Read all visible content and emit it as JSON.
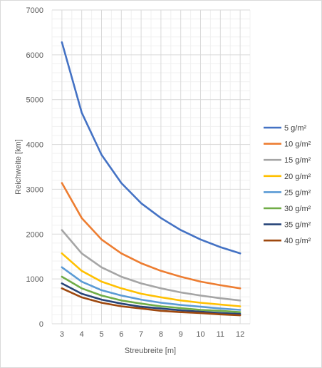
{
  "chart_data": {
    "type": "line",
    "title": "",
    "xlabel": "Streubreite [m]",
    "ylabel": "Reichweite [km]",
    "x": [
      3,
      4,
      5,
      6,
      7,
      8,
      9,
      10,
      11,
      12
    ],
    "xlim": [
      2.5,
      12.5
    ],
    "ylim": [
      0,
      7000
    ],
    "yticks": [
      0,
      1000,
      2000,
      3000,
      4000,
      5000,
      6000,
      7000
    ],
    "grid": true,
    "legend_position": "right",
    "series": [
      {
        "name": "5 g/m²",
        "color": "#4472c4",
        "values": [
          6280,
          4710,
          3770,
          3140,
          2690,
          2360,
          2090,
          1880,
          1710,
          1570
        ]
      },
      {
        "name": "10 g/m²",
        "color": "#ed7d31",
        "values": [
          3140,
          2360,
          1880,
          1570,
          1350,
          1180,
          1050,
          940,
          860,
          790
        ]
      },
      {
        "name": "15 g/m²",
        "color": "#a5a5a5",
        "values": [
          2090,
          1570,
          1260,
          1050,
          900,
          790,
          700,
          630,
          570,
          520
        ]
      },
      {
        "name": "20 g/m²",
        "color": "#ffc000",
        "values": [
          1570,
          1180,
          940,
          790,
          670,
          590,
          520,
          470,
          430,
          390
        ]
      },
      {
        "name": "25 g/m²",
        "color": "#5b9bd5",
        "values": [
          1260,
          940,
          750,
          630,
          540,
          470,
          420,
          380,
          340,
          310
        ]
      },
      {
        "name": "30 g/m²",
        "color": "#70ad47",
        "values": [
          1050,
          790,
          630,
          520,
          450,
          390,
          350,
          310,
          290,
          260
        ]
      },
      {
        "name": "35 g/m²",
        "color": "#264478",
        "values": [
          900,
          670,
          540,
          450,
          380,
          340,
          300,
          270,
          240,
          220
        ]
      },
      {
        "name": "40 g/m²",
        "color": "#9e480e",
        "values": [
          790,
          590,
          470,
          390,
          340,
          290,
          260,
          240,
          210,
          190
        ]
      }
    ]
  }
}
